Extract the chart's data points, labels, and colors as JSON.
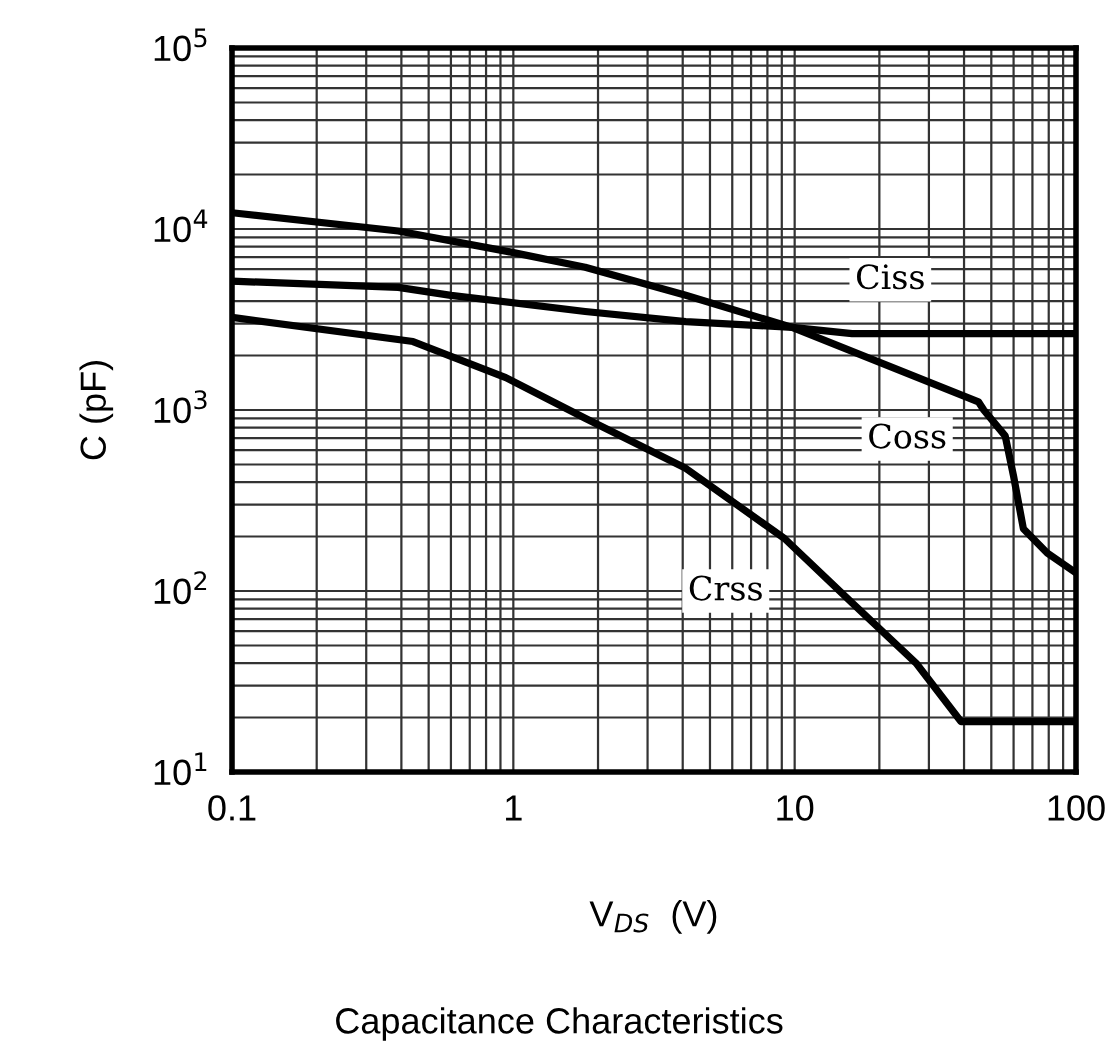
{
  "chart_data": {
    "type": "line",
    "title": "Capacitance Characteristics",
    "xlabel": "V$_{DS}$  (V)",
    "ylabel": "C (pF)",
    "log": "xy",
    "grid": true,
    "legend": false,
    "marker": "none",
    "line_style": "solid",
    "xlim": [
      0.1,
      100
    ],
    "xticks": [
      0.1,
      1,
      10,
      100
    ],
    "ylim": [
      10,
      100000
    ],
    "yticks": [
      {
        "value": 10,
        "label": "10$^{1}$"
      },
      {
        "value": 100,
        "label": "10$^{2}$"
      },
      {
        "value": 1000,
        "label": "10$^{3}$"
      },
      {
        "value": 10000,
        "label": "10$^{4}$"
      },
      {
        "value": 100000,
        "label": "10$^{5}$"
      }
    ],
    "series": [
      {
        "name": "Ciss",
        "color": "#000000",
        "x": [
          0.1,
          0.39,
          0.6,
          1.8,
          4.1,
          9.8,
          16,
          100
        ],
        "values": [
          5150,
          4760,
          4300,
          3500,
          3080,
          2860,
          2640,
          2640
        ]
      },
      {
        "name": "Coss",
        "color": "#000000",
        "x": [
          0.1,
          0.39,
          0.94,
          1.8,
          4.1,
          9.8,
          45,
          47,
          56,
          60,
          65,
          79,
          100
        ],
        "values": [
          12300,
          9750,
          7550,
          6150,
          4300,
          2860,
          1110,
          1000,
          720,
          430,
          221,
          162,
          126
        ]
      },
      {
        "name": "Crss",
        "color": "#000000",
        "x": [
          0.1,
          0.44,
          0.94,
          1.8,
          4.1,
          9.2,
          16,
          27,
          39,
          100
        ],
        "values": [
          3250,
          2390,
          1510,
          900,
          476,
          195,
          86,
          40,
          19,
          19
        ]
      }
    ]
  }
}
